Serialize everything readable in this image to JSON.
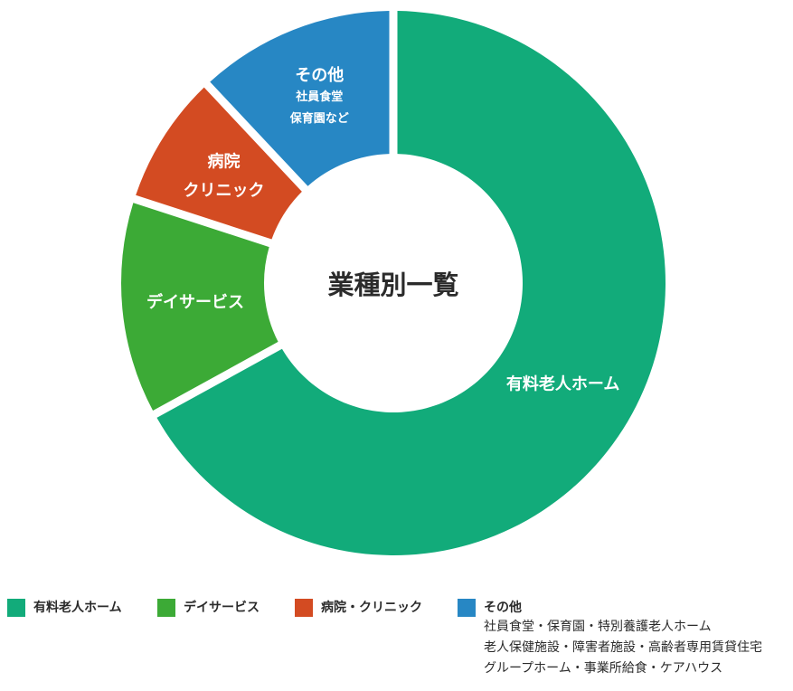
{
  "chart_data": {
    "type": "pie",
    "title": "業種別一覧",
    "categories": [
      "有料老人ホーム",
      "デイサービス",
      "病院・クリニック",
      "その他"
    ],
    "values": [
      67,
      13,
      8,
      12
    ],
    "colors": [
      "#12ab7a",
      "#3caa36",
      "#d34b22",
      "#2787c4"
    ],
    "segment_labels": [
      [
        "有料老人ホーム"
      ],
      [
        "デイサービス"
      ],
      [
        "病院",
        "クリニック"
      ],
      [
        "その他",
        "社員食堂",
        "保育園など"
      ]
    ]
  },
  "legend": {
    "items": [
      {
        "label": "有料老人ホーム",
        "color": "#12ab7a"
      },
      {
        "label": "デイサービス",
        "color": "#3caa36"
      },
      {
        "label": "病院・クリニック",
        "color": "#d34b22"
      },
      {
        "label": "その他",
        "color": "#2787c4"
      }
    ],
    "other_details": [
      "社員食堂・保育園・特別養護老人ホーム",
      "老人保健施設・障害者施設・高齢者専用賃貸住宅",
      "グループホーム・事業所給食・ケアハウス"
    ]
  }
}
